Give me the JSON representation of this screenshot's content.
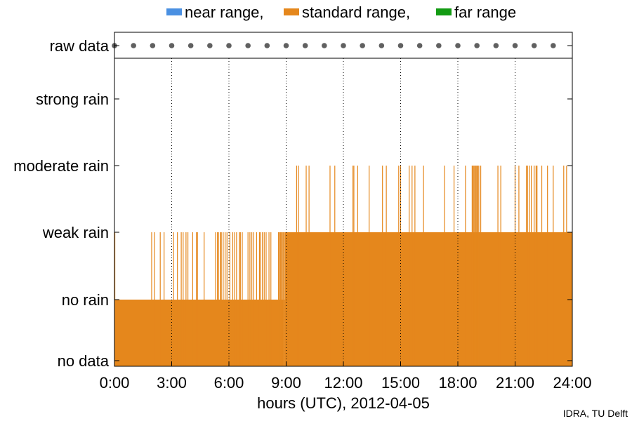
{
  "chart_data": {
    "type": "bar",
    "title": "",
    "xlabel": "hours (UTC), 2012-04-05",
    "ylabel": "",
    "xlim": [
      0,
      24
    ],
    "x_ticks": [
      "0:00",
      "3:00",
      "6:00",
      "9:00",
      "12:00",
      "15:00",
      "18:00",
      "21:00",
      "24:00"
    ],
    "y_categories": [
      "no data",
      "no rain",
      "weak rain",
      "moderate rain",
      "strong rain",
      "raw data"
    ],
    "legend": {
      "placement": "top",
      "entries": [
        {
          "label": "near range,",
          "color": "#4a90e2"
        },
        {
          "label": "standard range,",
          "color": "#e5871c"
        },
        {
          "label": "far range",
          "color": "#139b13"
        }
      ]
    },
    "grid": {
      "vertical_dotted": true,
      "horizontal": false
    },
    "series": [
      {
        "name": "standard range,",
        "color": "#e5871c",
        "base_levels": [
          {
            "x0": 0.0,
            "x1": 8.9,
            "level": 1
          },
          {
            "x0": 8.9,
            "x1": 24.0,
            "level": 2
          }
        ],
        "spikes_to_weak_rain_hours": [
          0.02,
          1.95,
          2.1,
          2.4,
          2.6,
          3.1,
          3.3,
          3.5,
          3.6,
          3.75,
          3.85,
          4.1,
          4.3,
          4.35,
          4.7,
          5.3,
          5.4,
          5.45,
          5.55,
          5.6,
          5.7,
          5.8,
          5.9,
          6.05,
          6.2,
          6.3,
          6.4,
          6.55,
          6.6,
          6.7,
          7.0,
          7.1,
          7.2,
          7.3,
          7.45,
          7.6,
          7.65,
          7.75,
          7.85,
          7.95,
          8.1,
          8.2,
          8.6,
          8.65,
          8.7,
          8.75,
          8.8,
          8.85
        ],
        "spikes_to_moderate_rain_hours": [
          9.55,
          9.65,
          10.05,
          10.2,
          11.3,
          11.55,
          12.5,
          12.55,
          12.75,
          13.35,
          14.05,
          14.25,
          14.9,
          15.0,
          15.45,
          15.6,
          15.75,
          16.2,
          17.3,
          17.8,
          18.4,
          18.75,
          18.8,
          18.85,
          18.9,
          18.95,
          19.0,
          19.05,
          19.1,
          19.2,
          20.1,
          20.25,
          21.0,
          21.2,
          21.6,
          21.65,
          21.75,
          21.85,
          22.0,
          22.1,
          22.15,
          22.4,
          22.7,
          23.0,
          23.55,
          23.7
        ]
      }
    ],
    "raw_data_marker_hours": [
      0,
      1,
      2,
      3,
      4,
      5,
      6,
      7,
      8,
      9,
      10,
      11,
      12,
      13,
      14,
      15,
      16,
      17,
      18,
      19,
      20,
      21,
      22,
      23
    ],
    "credit": "IDRA, TU Delft"
  }
}
